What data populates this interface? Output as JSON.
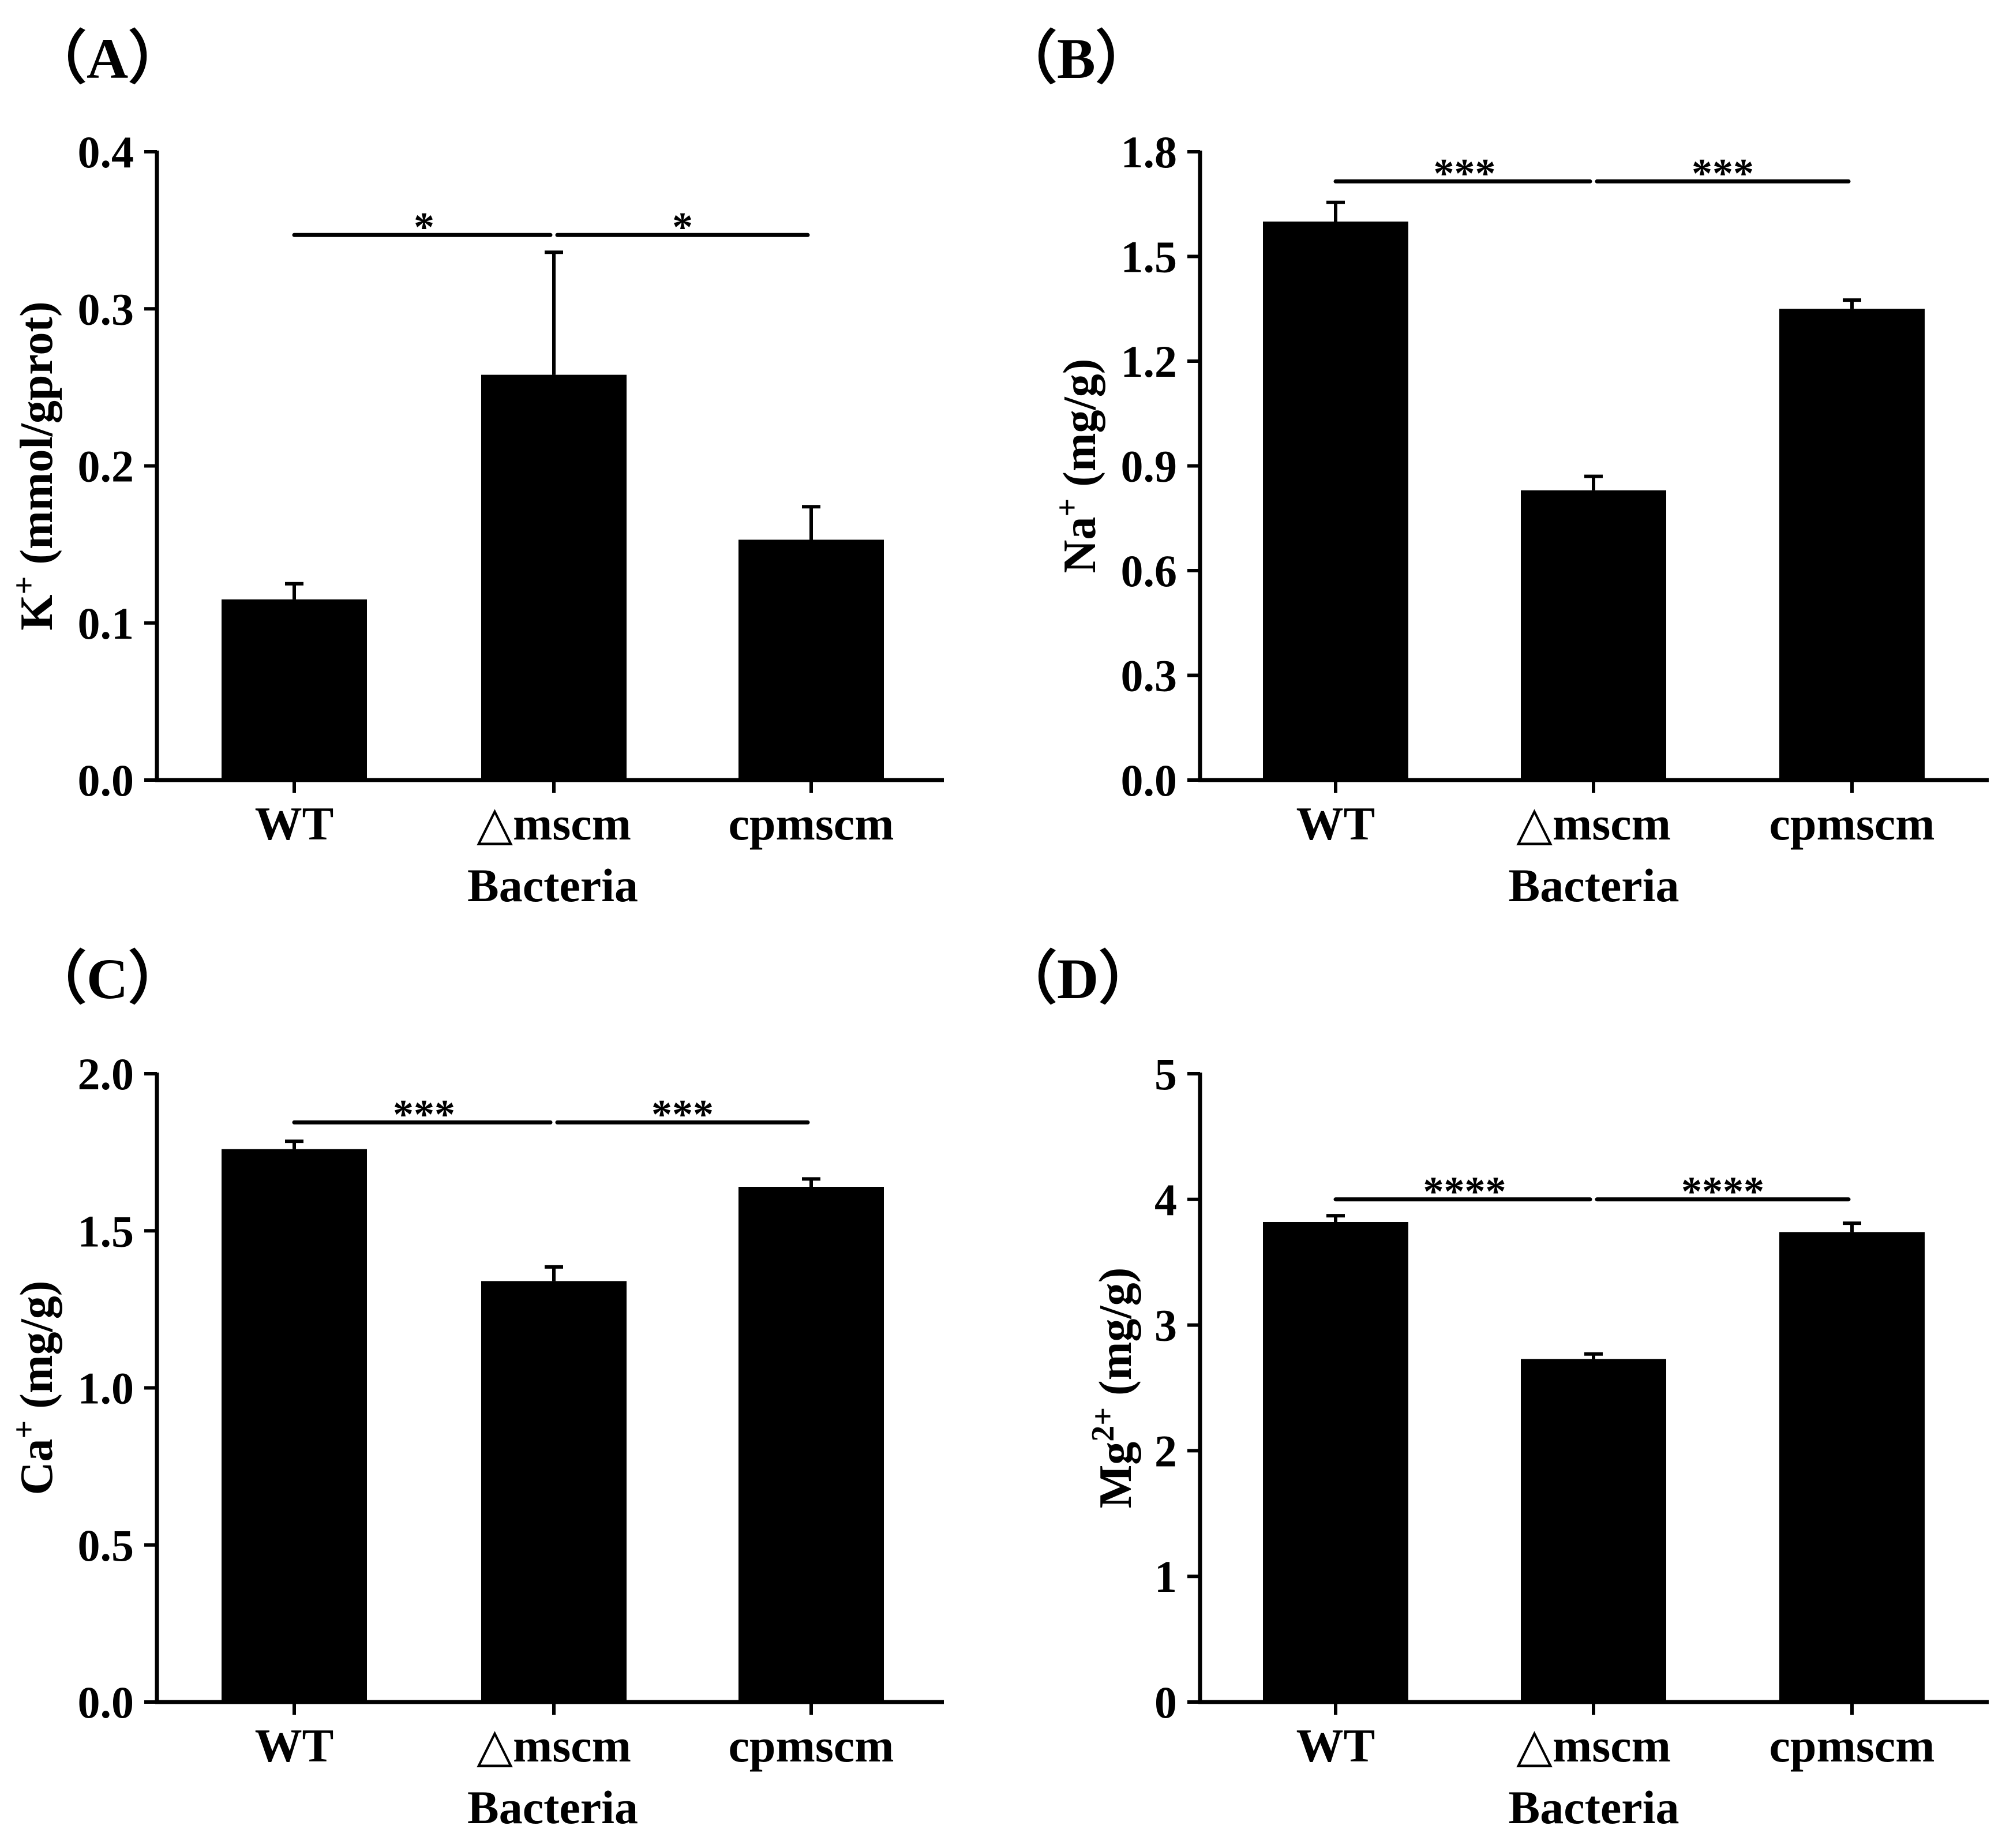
{
  "chart_data": [
    {
      "type": "bar",
      "panel": "（A）",
      "categories": [
        "WT",
        "△mscm",
        "cpmscm"
      ],
      "values": [
        0.115,
        0.258,
        0.153
      ],
      "errors": [
        0.01,
        0.078,
        0.021
      ],
      "ylabel": "K",
      "ylabel_sup": "+",
      "ylabel_unit": " (mmol/gprot)",
      "xlabel": "Bacteria",
      "ylim": [
        0,
        0.4
      ],
      "yticks": [
        0.0,
        0.1,
        0.2,
        0.3,
        0.4
      ],
      "ytick_labels": [
        "0.0",
        "0.1",
        "0.2",
        "0.3",
        "0.4"
      ],
      "significance": [
        {
          "from": 0,
          "to": 1,
          "label": "*",
          "y": 0.347
        },
        {
          "from": 1,
          "to": 2,
          "label": "*",
          "y": 0.347
        }
      ]
    },
    {
      "type": "bar",
      "panel": "（B）",
      "categories": [
        "WT",
        "△mscm",
        "cpmscm"
      ],
      "values": [
        1.6,
        0.83,
        1.35
      ],
      "errors": [
        0.055,
        0.04,
        0.025
      ],
      "ylabel": "Na",
      "ylabel_sup": "+",
      "ylabel_unit": " (mg/g)",
      "xlabel": "Bacteria",
      "ylim": [
        0,
        1.8
      ],
      "yticks": [
        0.0,
        0.3,
        0.6,
        0.9,
        1.2,
        1.5,
        1.8
      ],
      "ytick_labels": [
        "0.0",
        "0.3",
        "0.6",
        "0.9",
        "1.2",
        "1.5",
        "1.8"
      ],
      "significance": [
        {
          "from": 0,
          "to": 1,
          "label": "***",
          "y": 1.715
        },
        {
          "from": 1,
          "to": 2,
          "label": "***",
          "y": 1.715
        }
      ]
    },
    {
      "type": "bar",
      "panel": "（C）",
      "categories": [
        "WT",
        "△mscm",
        "cpmscm"
      ],
      "values": [
        1.76,
        1.34,
        1.64
      ],
      "errors": [
        0.025,
        0.045,
        0.025
      ],
      "ylabel": "Ca",
      "ylabel_sup": "+",
      "ylabel_unit": " (mg/g)",
      "xlabel": "Bacteria",
      "ylim": [
        0,
        2.0
      ],
      "yticks": [
        0.0,
        0.5,
        1.0,
        1.5,
        2.0
      ],
      "ytick_labels": [
        "0.0",
        "0.5",
        "1.0",
        "1.5",
        "2.0"
      ],
      "significance": [
        {
          "from": 0,
          "to": 1,
          "label": "***",
          "y": 1.845
        },
        {
          "from": 1,
          "to": 2,
          "label": "***",
          "y": 1.845
        }
      ]
    },
    {
      "type": "bar",
      "panel": "（D）",
      "categories": [
        "WT",
        "△mscm",
        "cpmscm"
      ],
      "values": [
        3.82,
        2.73,
        3.74
      ],
      "errors": [
        0.05,
        0.04,
        0.07
      ],
      "ylabel": "Mg",
      "ylabel_sup": "2+",
      "ylabel_unit": " (mg/g)",
      "xlabel": "Bacteria",
      "ylim": [
        0,
        5
      ],
      "yticks": [
        0,
        1,
        2,
        3,
        4,
        5
      ],
      "ytick_labels": [
        "0",
        "1",
        "2",
        "3",
        "4",
        "5"
      ],
      "significance": [
        {
          "from": 0,
          "to": 1,
          "label": "****",
          "y": 4.0
        },
        {
          "from": 1,
          "to": 2,
          "label": "****",
          "y": 4.0
        }
      ]
    }
  ],
  "colors": {
    "bar": "#000000",
    "axis": "#000000",
    "background": "#ffffff"
  }
}
